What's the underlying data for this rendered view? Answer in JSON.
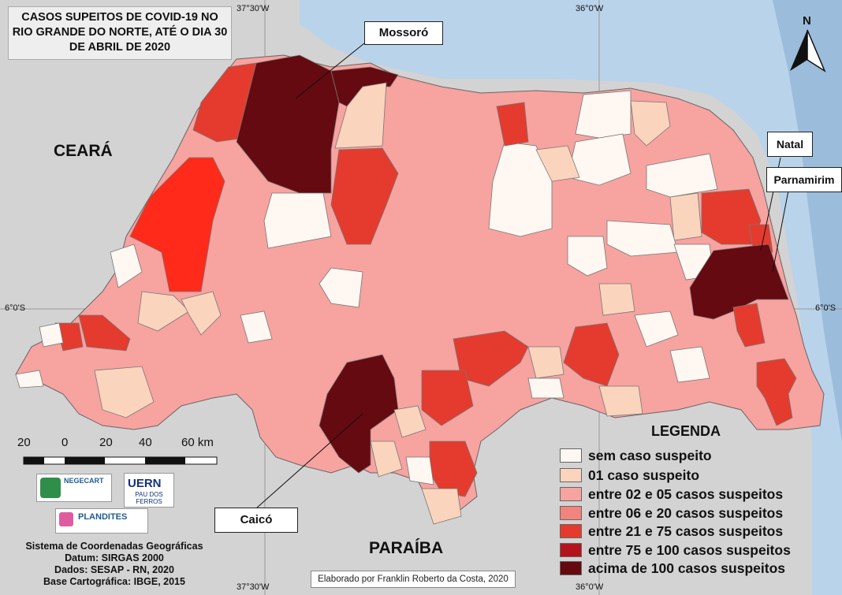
{
  "title": {
    "line1": "CASOS SUPEITOS DE COVID-19 NO",
    "line2": "RIO GRANDE DO NORTE, ATÉ O DIA 30",
    "line3": "DE ABRIL DE 2020"
  },
  "coordinates": {
    "top_left": "37°30'W",
    "top_right": "36°0'W",
    "bottom_left": "37°30'W",
    "bottom_right": "36°0'W",
    "left_lat": "6°0'S",
    "right_lat": "6°0'S"
  },
  "regions": {
    "ceara": "CEARÁ",
    "paraiba": "PARAÍBA"
  },
  "cities": {
    "mossoro": "Mossoró",
    "natal": "Natal",
    "parnamirim": "Parnamirim",
    "caico": "Caicó"
  },
  "north_label": "N",
  "scale": {
    "labels": [
      "20",
      "0",
      "20",
      "40",
      "60 km"
    ]
  },
  "legend": {
    "title": "LEGENDA",
    "items": [
      {
        "label": "sem caso suspeito",
        "color": "#fff7f2"
      },
      {
        "label": "01 caso suspeito",
        "color": "#fbd4bd"
      },
      {
        "label": "entre 02 e 05 casos suspeitos",
        "color": "#f7a3a0"
      },
      {
        "label": "entre 06 e 20 casos suspeitos",
        "color": "#f2837d"
      },
      {
        "label": "entre 21 e 75 casos suspeitos",
        "color": "#e43b2e"
      },
      {
        "label": "entre 75 e 100 casos suspeitos",
        "color": "#b3141c"
      },
      {
        "label": "acima de 100 casos suspeitos",
        "color": "#650a10"
      }
    ]
  },
  "logos": {
    "negecart": "NEGECART",
    "uern": "UERN",
    "pau_dos_ferros": "PAU DOS FERROS",
    "plandites": "PLANDITES"
  },
  "info": {
    "line1": "Sistema de Coordenadas Geográficas",
    "line2": "Datum: SIRGAS 2000",
    "line3": "Dados: SESAP - RN, 2020",
    "line4": "Base Cartográfica: IBGE, 2015"
  },
  "credit": "Elaborado por Franklin Roberto da Costa, 2020",
  "colors": {
    "ocean": "#b9d3ea",
    "land": "#d3d3d3",
    "border": "#666666"
  }
}
